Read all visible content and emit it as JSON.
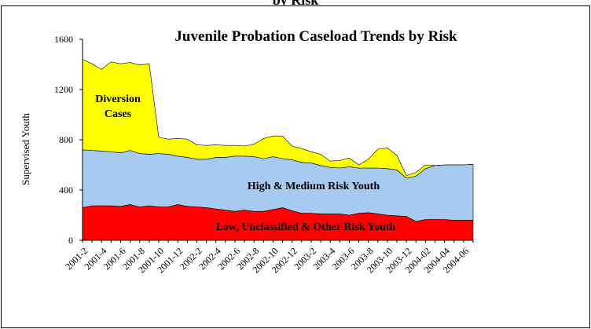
{
  "page": {
    "header": "by Risk"
  },
  "chart_data": {
    "type": "area",
    "stacked": true,
    "title": "Juvenile Probation Caseload Trends by Risk",
    "ylabel": "Supervised Youth",
    "xlabel": "",
    "ylim": [
      0,
      1600
    ],
    "yticks": [
      0,
      400,
      800,
      1200,
      1600
    ],
    "grid": false,
    "legend": "none",
    "x": [
      "2001-2",
      "2001-3",
      "2001-4",
      "2001-5",
      "2001-6",
      "2001-7",
      "2001-8",
      "2001-9",
      "2001-10",
      "2001-11",
      "2001-12",
      "2002-1",
      "2002-2",
      "2002-3",
      "2002-4",
      "2002-5",
      "2002-6",
      "2002-7",
      "2002-8",
      "2002-9",
      "2002-10",
      "2002-11",
      "2002-12",
      "2003-1",
      "2003-2",
      "2003-3",
      "2003-4",
      "2003-5",
      "2003-6",
      "2003-7",
      "2003-8",
      "2003-9",
      "2003-10",
      "2003-11",
      "2003-12",
      "2004-01",
      "2004-02",
      "2004-03",
      "2004-04",
      "2004-05",
      "2004-06",
      "2004-07"
    ],
    "xtick_labels": [
      "2001-2",
      "2001-4",
      "2001-6",
      "2001-8",
      "2001-10",
      "2001-12",
      "2002-2",
      "2002-4",
      "2002-6",
      "2002-8",
      "2002-10",
      "2002-12",
      "2003-2",
      "2003-4",
      "2003-6",
      "2003-8",
      "2003-10",
      "2003-12",
      "2004-02",
      "2004-04",
      "2004-06"
    ],
    "series": [
      {
        "name": "Low, Unclassified & Other Risk Youth",
        "color": "#ff0000",
        "values": [
          260,
          275,
          275,
          275,
          270,
          285,
          265,
          275,
          265,
          265,
          285,
          270,
          265,
          260,
          250,
          240,
          230,
          240,
          230,
          230,
          245,
          260,
          235,
          215,
          215,
          210,
          210,
          210,
          200,
          215,
          220,
          210,
          200,
          195,
          190,
          150,
          165,
          165,
          165,
          160,
          160,
          160
        ]
      },
      {
        "name": "High & Medium Risk Youth",
        "color": "#a6caf0",
        "values": [
          460,
          440,
          435,
          430,
          425,
          430,
          425,
          410,
          425,
          420,
          385,
          390,
          380,
          385,
          410,
          420,
          440,
          430,
          435,
          420,
          420,
          390,
          405,
          405,
          400,
          385,
          370,
          365,
          385,
          360,
          355,
          365,
          370,
          365,
          305,
          360,
          405,
          430,
          435,
          440,
          440,
          445
        ]
      },
      {
        "name": "Diversion Cases",
        "color": "#ffff00",
        "values": [
          720,
          690,
          650,
          715,
          710,
          700,
          705,
          720,
          130,
          120,
          140,
          145,
          115,
          110,
          100,
          95,
          85,
          80,
          100,
          160,
          165,
          180,
          110,
          110,
          90,
          90,
          50,
          60,
          70,
          25,
          70,
          150,
          165,
          115,
          20,
          30,
          30,
          0,
          0,
          0,
          0,
          0
        ]
      }
    ],
    "annotations": [
      {
        "text_lines": [
          "Diversion",
          "Cases"
        ],
        "series": "Diversion Cases"
      },
      {
        "text_lines": [
          "High & Medium Risk Youth"
        ],
        "series": "High & Medium Risk Youth"
      },
      {
        "text_lines": [
          "Low, Unclassified & Other Risk Youth"
        ],
        "series": "Low, Unclassified & Other Risk Youth"
      }
    ]
  }
}
